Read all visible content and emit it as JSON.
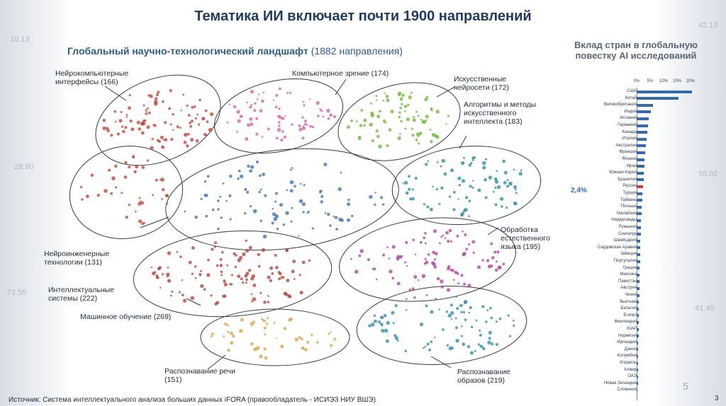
{
  "title": "Тематика ИИ включает почти 1900 направлений",
  "subtitle": {
    "text": "Глобальный научно-технологический ландшафт",
    "count": "(1882 направления)"
  },
  "clusters": {
    "neuro_interfaces": "Нейрокомпьютерные интерфейсы (166)",
    "computer_vision": "Компьютерное зрение (174)",
    "neural_networks": "Искусственные нейросети (172)",
    "algorithms": "Алгоритмы и методы искусственного интеллекта (183)",
    "neuroengineering": "Нейроинженерные технологии (131)",
    "intelligent_systems": "Интеллектуальные системы (222)",
    "machine_learning": "Машинное обучение (269)",
    "nlp": "Обработка естественного языка (195)",
    "speech": "Распознавание речи (151)",
    "pattern": "Распознавание образов (219)"
  },
  "side_panel": {
    "title": "Вклад стран в глобальную повестку AI исследований",
    "axis_ticks": [
      "0%",
      "5%",
      "10%",
      "15%",
      "20%"
    ],
    "highlight_value": "2,4%",
    "countries": [
      {
        "name": "США",
        "value": 20.5
      },
      {
        "name": "Китай",
        "value": 15.5
      },
      {
        "name": "Великобритания",
        "value": 6.0
      },
      {
        "name": "Индия",
        "value": 5.2
      },
      {
        "name": "Испания",
        "value": 4.6
      },
      {
        "name": "Германия",
        "value": 4.3
      },
      {
        "name": "Канада",
        "value": 3.9
      },
      {
        "name": "Италия",
        "value": 3.6
      },
      {
        "name": "Австралия",
        "value": 3.4
      },
      {
        "name": "Франция",
        "value": 3.2
      },
      {
        "name": "Япония",
        "value": 3.0
      },
      {
        "name": "Иран",
        "value": 2.8
      },
      {
        "name": "Южная Корея",
        "value": 2.6
      },
      {
        "name": "Бразилия",
        "value": 2.5
      },
      {
        "name": "Россия",
        "value": 2.4,
        "highlight": true
      },
      {
        "name": "Турция",
        "value": 2.2
      },
      {
        "name": "Тайвань",
        "value": 2.0
      },
      {
        "name": "Польша",
        "value": 1.9
      },
      {
        "name": "Малайзия",
        "value": 1.8
      },
      {
        "name": "Нидерланды",
        "value": 1.7
      },
      {
        "name": "Румыния",
        "value": 1.6
      },
      {
        "name": "Сингапур",
        "value": 1.5
      },
      {
        "name": "Швейцария",
        "value": 1.4
      },
      {
        "name": "Саудовская Аравия",
        "value": 1.3
      },
      {
        "name": "Швеция",
        "value": 1.25
      },
      {
        "name": "Португалия",
        "value": 1.2
      },
      {
        "name": "Греция",
        "value": 1.15
      },
      {
        "name": "Мексика",
        "value": 1.1
      },
      {
        "name": "Пакистан",
        "value": 1.05
      },
      {
        "name": "Австрия",
        "value": 1.0
      },
      {
        "name": "Чехия",
        "value": 0.95
      },
      {
        "name": "Вьетнам",
        "value": 0.9
      },
      {
        "name": "Бельгия",
        "value": 0.85
      },
      {
        "name": "Египет",
        "value": 0.8
      },
      {
        "name": "Финляндия",
        "value": 0.75
      },
      {
        "name": "ЮАР",
        "value": 0.72
      },
      {
        "name": "Норвегия",
        "value": 0.68
      },
      {
        "name": "Ирландия",
        "value": 0.64
      },
      {
        "name": "Дания",
        "value": 0.6
      },
      {
        "name": "Колумбия",
        "value": 0.56
      },
      {
        "name": "Израиль",
        "value": 0.52
      },
      {
        "name": "Алжир",
        "value": 0.48
      },
      {
        "name": "ОАЭ",
        "value": 0.44
      },
      {
        "name": "Новая Зеландия",
        "value": 0.4
      },
      {
        "name": "Словения",
        "value": 0.36
      }
    ]
  },
  "page_number": "5",
  "slide_number": "3",
  "source": "Источник: Система интеллектуального анализа больших данных iFORA (правообладатель - ИСИЭЗ НИУ ВШЭ)",
  "background_numbers": [
    "10.13",
    "28.90",
    "72.55",
    "42.13",
    "55.02",
    "41.40"
  ],
  "colors": {
    "title": "#1f3a5f",
    "bar": "#2f6ab3",
    "highlight": "#d23b3b"
  }
}
